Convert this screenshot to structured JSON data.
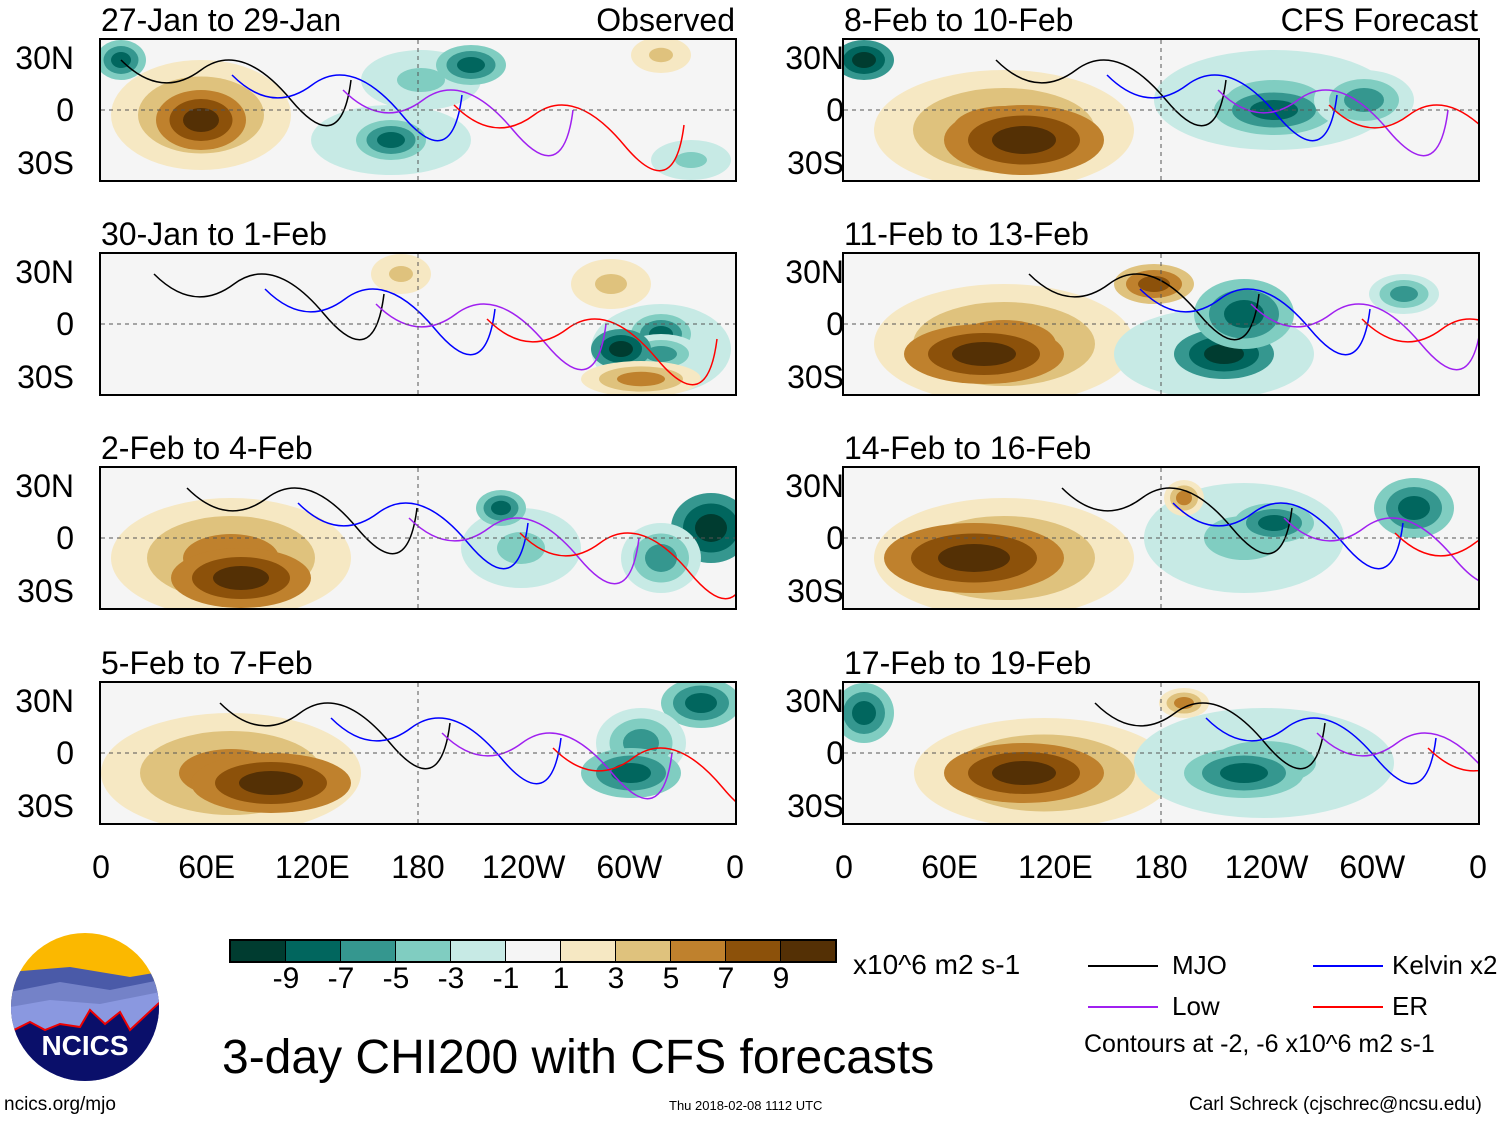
{
  "panels_left": [
    {
      "title": "27-Jan to 29-Jan",
      "tag": "Observed"
    },
    {
      "title": "30-Jan to 1-Feb"
    },
    {
      "title": "2-Feb to 4-Feb"
    },
    {
      "title": "5-Feb to 7-Feb"
    }
  ],
  "panels_right": [
    {
      "title": "8-Feb to 10-Feb",
      "tag": "CFS Forecast"
    },
    {
      "title": "11-Feb to 13-Feb"
    },
    {
      "title": "14-Feb to 16-Feb"
    },
    {
      "title": "17-Feb to 19-Feb"
    }
  ],
  "lat_labels": [
    "30N",
    "0",
    "30S"
  ],
  "lon_labels": [
    "0",
    "60E",
    "120E",
    "180",
    "120W",
    "60W",
    "0"
  ],
  "colorbar": {
    "colors": [
      "#003c30",
      "#01665e",
      "#35978f",
      "#80cdc1",
      "#c7eae5",
      "#f5f5f5",
      "#f6e8c3",
      "#dfc27d",
      "#bf812d",
      "#8c510a",
      "#543005"
    ],
    "labels": [
      "-9",
      "-7",
      "-5",
      "-3",
      "-1",
      "1",
      "3",
      "5",
      "7",
      "9"
    ],
    "units": "x10^6 m2 s-1"
  },
  "legend": {
    "items": [
      {
        "label": "MJO",
        "color": "#000000"
      },
      {
        "label": "Kelvin x2",
        "color": "#0000ff"
      },
      {
        "label": "Low",
        "color": "#a020f0"
      },
      {
        "label": "ER",
        "color": "#ff0000"
      }
    ],
    "note": "Contours at -2, -6 x10^6 m2 s-1"
  },
  "logo": {
    "text": "NCICS"
  },
  "footer": {
    "url": "ncics.org/mjo",
    "title": "3-day CHI200 with CFS forecasts",
    "timestamp": "Thu 2018-02-08 1112 UTC",
    "credit": "Carl Schreck (cjschrec@ncsu.edu)"
  }
}
